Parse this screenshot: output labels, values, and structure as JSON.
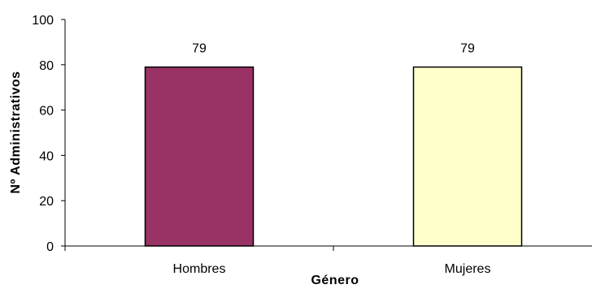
{
  "chart_data": {
    "type": "bar",
    "categories": [
      "Hombres",
      "Mujeres"
    ],
    "values": [
      79,
      79
    ],
    "colors": [
      "#993366",
      "#FFFFCC"
    ],
    "data_labels": [
      "79",
      "79"
    ],
    "xlabel": "Género",
    "ylabel": "Nº Administrativos",
    "ylim": [
      0,
      100
    ],
    "yticks": [
      0,
      20,
      40,
      60,
      80,
      100
    ],
    "yticklabels": [
      "0",
      "20",
      "40",
      "60",
      "80",
      "100"
    ],
    "grid": false,
    "legend": "none"
  }
}
